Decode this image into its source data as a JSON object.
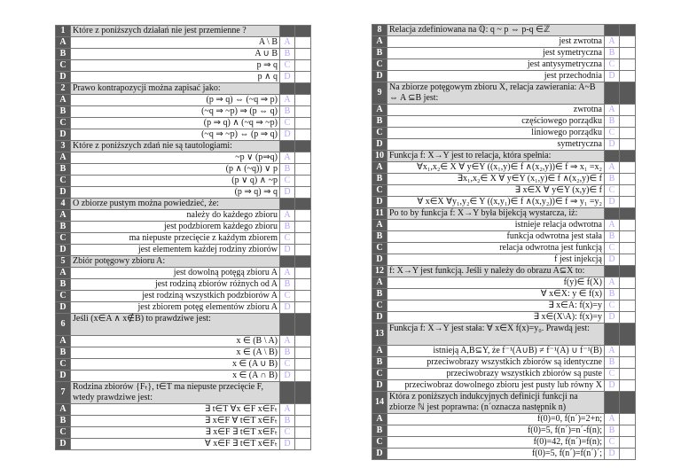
{
  "left": {
    "questions": [
      {
        "num": "1",
        "text": "Które z poniższych działań nie jest przemienne ?",
        "lines": 1,
        "options": [
          {
            "letter": "A",
            "text": "A \\ B"
          },
          {
            "letter": "B",
            "text": "A ∪ B"
          },
          {
            "letter": "C",
            "text": "p ⇒ q"
          },
          {
            "letter": "D",
            "text": "p ∧ q"
          }
        ]
      },
      {
        "num": "2",
        "text": "Prawo kontrapozycji można zapisać jako:",
        "lines": 1,
        "options": [
          {
            "letter": "A",
            "text": "(p ⇒ q) ⇔ (~q ⇒ p)"
          },
          {
            "letter": "B",
            "text": "(~q ⇒ ~p) ⇒ (p ⇔ q)"
          },
          {
            "letter": "C",
            "text": "(p ⇒ q) ∧ (~q ⇒ ~p)"
          },
          {
            "letter": "D",
            "text": "(~q ⇒ ~p) ⇔ (p ⇒ q)"
          }
        ]
      },
      {
        "num": "3",
        "text": "Które z poniższych zdań nie są tautologiami:",
        "lines": 1,
        "options": [
          {
            "letter": "A",
            "text": "~p ∨ (p⇒q)"
          },
          {
            "letter": "B",
            "text": "(p ∧ (~q)) ∨ p"
          },
          {
            "letter": "C",
            "text": "(p ∨ q) ∧ ~p"
          },
          {
            "letter": "D",
            "text": "(p ⇒ q) ⇒ q"
          }
        ]
      },
      {
        "num": "4",
        "text": "O zbiorze pustym można powiedzieć, że:",
        "lines": 1,
        "options": [
          {
            "letter": "A",
            "text": "należy do każdego zbioru"
          },
          {
            "letter": "B",
            "text": "jest podzbiorem każdego zbioru"
          },
          {
            "letter": "C",
            "text": "ma niepuste przecięcie z każdym zbiorem"
          },
          {
            "letter": "D",
            "text": "jest elementem każdej rodziny zbiorów"
          }
        ]
      },
      {
        "num": "5",
        "text": "Zbiór potęgowy zbioru A:",
        "lines": 1,
        "options": [
          {
            "letter": "A",
            "text": "jest dowolną potęgą zbioru A"
          },
          {
            "letter": "B",
            "text": "jest  rodziną zbiorów różnych od A"
          },
          {
            "letter": "C",
            "text": "jest rodziną wszystkich podzbiorów A"
          },
          {
            "letter": "D",
            "text": "jest zbiorem potęg elementów zbioru A"
          }
        ]
      },
      {
        "num": "6",
        "text": "Jeśli (x∈A ∧ x∉B) to prawdziwe jest:",
        "lines": 2,
        "options": [
          {
            "letter": "A",
            "text": "x ∈ (B \\ A)"
          },
          {
            "letter": "B",
            "text": "x ∈ (A \\ B)"
          },
          {
            "letter": "C",
            "text": "x ∈ (A ∪ B)"
          },
          {
            "letter": "D",
            "text": "x ∈ (A ∩ B)"
          }
        ]
      },
      {
        "num": "7",
        "text": "Rodzina zbiorów {Fₜ}, t∈T ma niepuste przecięcie F, wtedy prawdziwe jest:",
        "lines": 2,
        "options": [
          {
            "letter": "A",
            "text": "∃ t∈T ∀x ∈F  x∈Fₜ"
          },
          {
            "letter": "B",
            "text": "∃ x∈F  ∀ t∈T  x∈Fₜ"
          },
          {
            "letter": "C",
            "text": "∃ x∈F  ∃ t∈T  x∈Fₜ"
          },
          {
            "letter": "D",
            "text": "∀ x∈F  ∃ t∈T  x∈Fₜ"
          }
        ]
      }
    ]
  },
  "right": {
    "questions": [
      {
        "num": "8",
        "text": "Relacja zdefiniowana na ℚ: q ~ p ⇔ p-q ∈ℤ",
        "lines": 1,
        "options": [
          {
            "letter": "A",
            "text": "jest zwrotna"
          },
          {
            "letter": "B",
            "text": "jest symetryczna"
          },
          {
            "letter": "C",
            "text": "jest antysymetryczna"
          },
          {
            "letter": "D",
            "text": "jest przechodnia"
          }
        ]
      },
      {
        "num": "9",
        "text": "Na zbiorze potęgowym zbioru X, relacja zawierania: A~B ⇔ A ⊆B jest:",
        "lines": 2,
        "options": [
          {
            "letter": "A",
            "text": "zwrotna"
          },
          {
            "letter": "B",
            "text": "częściowego porządku"
          },
          {
            "letter": "C",
            "text": "liniowego porządku"
          },
          {
            "letter": "D",
            "text": "symetryczna"
          }
        ]
      },
      {
        "num": "10",
        "text": "Funkcja f: X→Y jest to relacja, która spełnia:",
        "lines": 1,
        "options": [
          {
            "letter": "A",
            "text": "∀x₁,x₂∈ X ∀ y∈Y  ((x₁,y)∈ f ∧(x₂,y))∈ f ⇒ x₁ =x₂"
          },
          {
            "letter": "B",
            "text": "∃x₁,x₂∈ X ∀ y∈Y  (x₁,y)∈ f ∧(x₂,y)∈ f"
          },
          {
            "letter": "C",
            "text": "∃ x∈X ∀ y∈Y  (x,y)∈ f"
          },
          {
            "letter": "D",
            "text": "∀ x∈X ∀y₁,y₂∈ Y  ((x,y₁)∈ f ∧(x,y₂))∈ f ⇒ y₁ =y₂"
          }
        ]
      },
      {
        "num": "11",
        "text": "Po to by funkcja f: X→Y była bijekcją wystarcza, iż:",
        "lines": 1,
        "options": [
          {
            "letter": "A",
            "text": "istnieje relacja odwrotna"
          },
          {
            "letter": "B",
            "text": "funkcja odwrotna jest stała"
          },
          {
            "letter": "C",
            "text": "relacja odwrotna jest funkcją"
          },
          {
            "letter": "D",
            "text": "f jest injekcją"
          }
        ]
      },
      {
        "num": "12",
        "text": "f: X→Y jest funkcją. Jeśli y należy do obrazu A⊆X to:",
        "lines": 1,
        "options": [
          {
            "letter": "A",
            "text": "f(y)∈  f(X)"
          },
          {
            "letter": "B",
            "text": "∀ x∈X: y ∈ f(x)"
          },
          {
            "letter": "C",
            "text": "∃ x∈A: f(x)=y"
          },
          {
            "letter": "D",
            "text": "∃ x∈(X\\A): f(x)=y"
          }
        ]
      },
      {
        "num": "13",
        "text": "Funkcja f: X→Y jest stała:  ∀ x∈X  f(x)=y₀. Prawdą jest:",
        "lines": 2,
        "options": [
          {
            "letter": "A",
            "text": "istnieją A,B⊆Y, że f⁻¹(A∪B) ≠ f⁻¹(A) ∪ f⁻¹(B)"
          },
          {
            "letter": "B",
            "text": "przeciwobrazy wszystkich zbiorów są identyczne"
          },
          {
            "letter": "C",
            "text": "przeciwobrazy wszystkich zbiorów są puste"
          },
          {
            "letter": "D",
            "text": "przeciwobraz dowolnego zbioru jest pusty lub równy X"
          }
        ]
      },
      {
        "num": "14",
        "text": "Która z poniższych indukcyjnych definicji funkcji na zbiorze ℕ jest poprawna: (n´oznacza następnik n)",
        "lines": 2,
        "options": [
          {
            "letter": "A",
            "text": "f(0)=0, f(n´)=2+n;"
          },
          {
            "letter": "B",
            "text": "f(0)=5, f(n´)=n´-f(n);"
          },
          {
            "letter": "C",
            "text": "f(0)=42, f(n´)=f(n);"
          },
          {
            "letter": "D",
            "text": "f(0)=5, f(n´)=f(n´)´;"
          }
        ]
      }
    ]
  }
}
